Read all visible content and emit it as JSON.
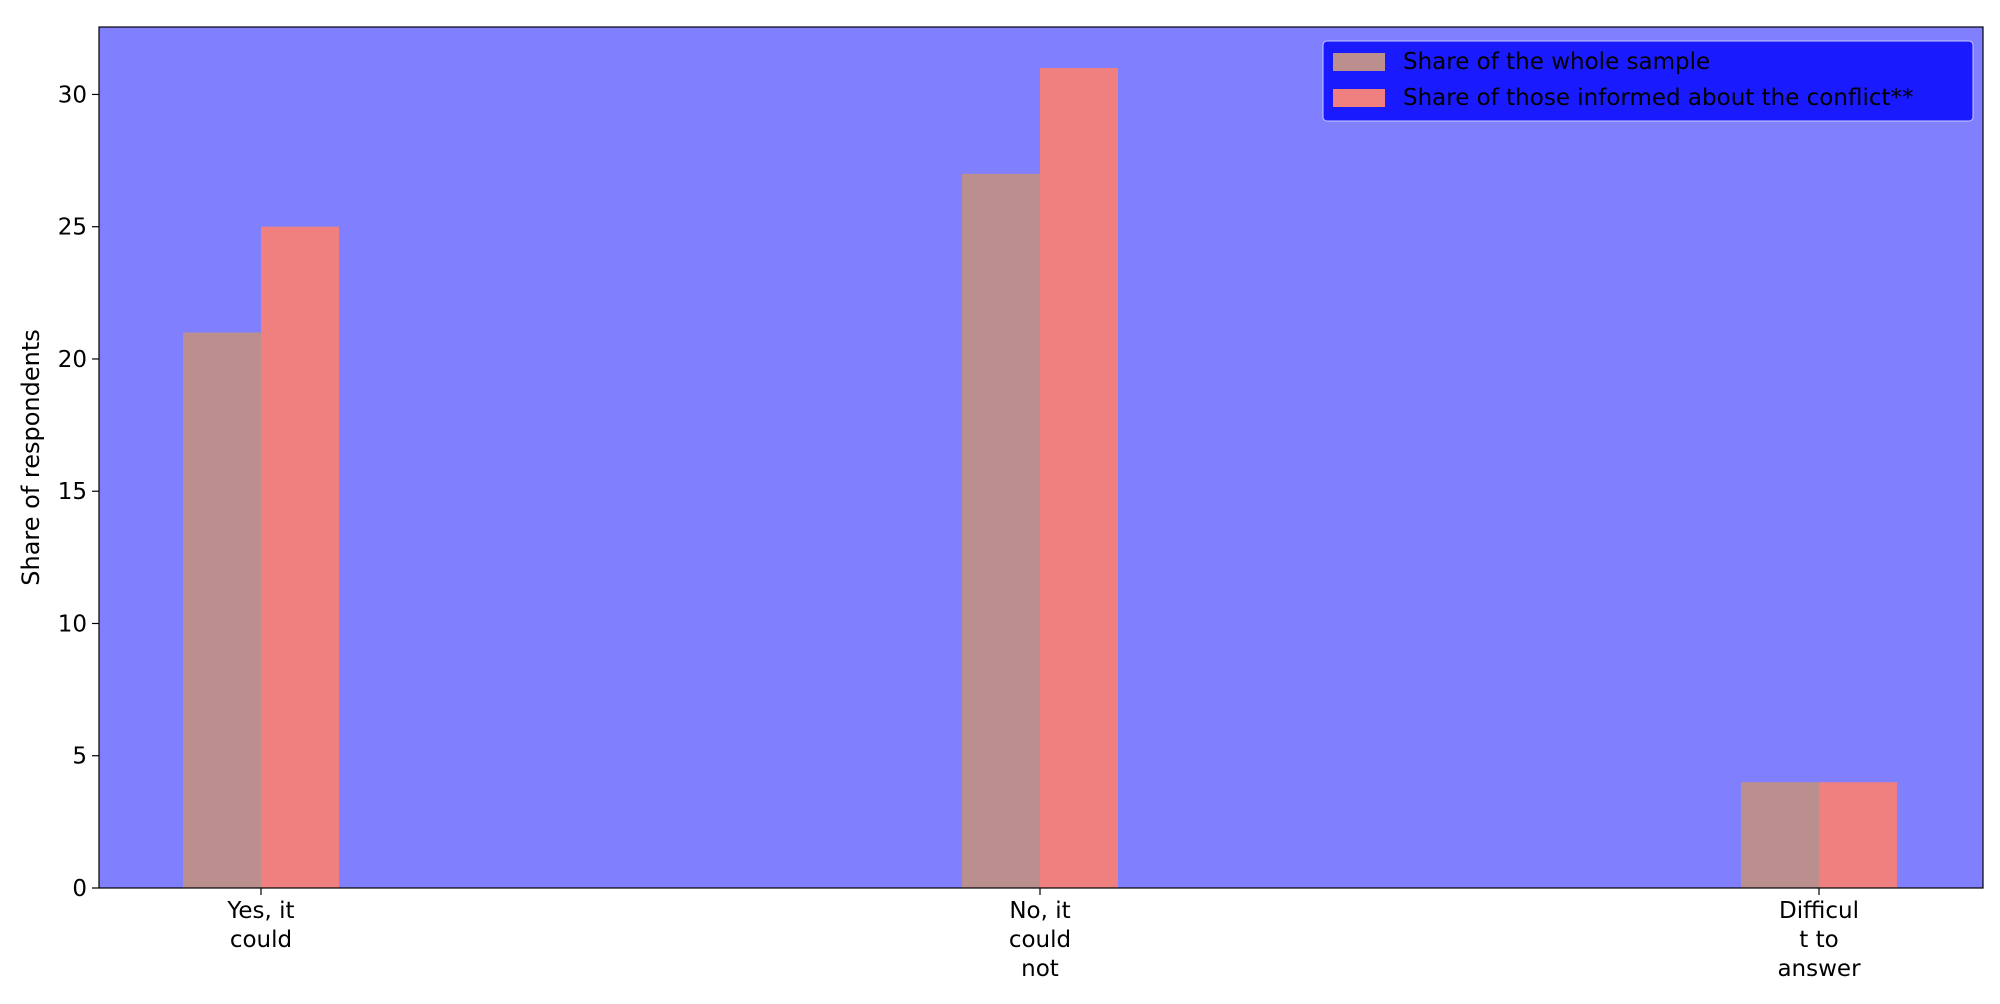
{
  "chart_data": {
    "type": "bar",
    "categories": [
      "Yes, it\ncould",
      "No, it\ncould\nnot",
      "Difficul\nt to\nanswer"
    ],
    "series": [
      {
        "name": "Share of the whole sample",
        "values": [
          21,
          27,
          4
        ],
        "color": "#bc8f8f"
      },
      {
        "name": "Share of those informed about the conflict**",
        "values": [
          25,
          31,
          4
        ],
        "color": "#f08080"
      }
    ],
    "title": "",
    "xlabel": "",
    "ylabel": "Share of respondents",
    "ylim": [
      0,
      32.55
    ],
    "yticks": [
      0,
      5,
      10,
      15,
      20,
      25,
      30
    ],
    "plot_background": "#8080ff",
    "legend_background": "#1a1aff",
    "legend_position": "top-right",
    "grid": false
  }
}
